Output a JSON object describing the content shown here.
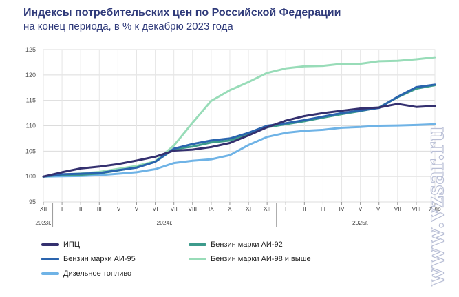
{
  "header": {
    "title": "Индексы потребительских цен по Российской Федерации",
    "subtitle": "на конец периода, в % к декабрю 2023 года"
  },
  "watermark": "www.vzsar.ru",
  "chart_data": {
    "type": "line",
    "y_ticks": [
      "95",
      "100",
      "105",
      "110",
      "115",
      "120",
      "125"
    ],
    "ylim": [
      95,
      125
    ],
    "grid": true,
    "x_labels": [
      "XII",
      "I",
      "II",
      "III",
      "IV",
      "V",
      "VI",
      "VII",
      "VIII",
      "IX",
      "X",
      "XI",
      "XII",
      "I",
      "II",
      "III",
      "IV",
      "V",
      "VI",
      "VII",
      "VIII",
      "IX"
    ],
    "x_label_last_visible": "Х по",
    "year_labels": [
      {
        "text": "2023г.",
        "anchor_index": 0
      },
      {
        "text": "2024г.",
        "anchor_index": 6.5
      },
      {
        "text": "2025г.",
        "anchor_index": 17
      }
    ],
    "series": [
      {
        "name": "ИПЦ",
        "color": "#34306f",
        "values": [
          100,
          100.85,
          101.6,
          101.95,
          102.45,
          103.15,
          103.9,
          105.1,
          105.3,
          105.8,
          106.6,
          108.1,
          109.7,
          111.0,
          111.9,
          112.5,
          112.95,
          113.4,
          113.6,
          114.3,
          113.7,
          113.9
        ]
      },
      {
        "name": "Бензин марки АИ-92",
        "color": "#3d9b8c",
        "values": [
          100,
          100.35,
          100.35,
          100.6,
          101.2,
          101.8,
          102.9,
          105.4,
          105.9,
          106.7,
          107.1,
          108.4,
          109.7,
          110.3,
          110.9,
          111.6,
          112.3,
          112.9,
          113.6,
          115.6,
          117.3,
          118.0
        ]
      },
      {
        "name": "Бензин марки АИ-95",
        "color": "#2a64ae",
        "values": [
          100,
          100.45,
          100.55,
          100.7,
          101.25,
          101.75,
          102.9,
          105.5,
          106.4,
          107.1,
          107.5,
          108.6,
          110.0,
          110.5,
          111.1,
          111.8,
          112.5,
          113.0,
          113.5,
          115.7,
          117.6,
          118.1
        ]
      },
      {
        "name": "Бензин марки АИ-98 и выше",
        "color": "#98dcb8",
        "values": [
          100,
          100.4,
          100.6,
          100.9,
          101.5,
          102.1,
          103.0,
          106.1,
          110.6,
          114.9,
          117.0,
          118.6,
          120.4,
          121.3,
          121.7,
          121.8,
          122.2,
          122.2,
          122.7,
          122.8,
          123.1,
          123.5
        ]
      },
      {
        "name": "Дизельное топливо",
        "color": "#6fb3e6",
        "values": [
          100,
          100.05,
          100.1,
          100.25,
          100.55,
          100.85,
          101.45,
          102.65,
          103.1,
          103.4,
          104.2,
          106.2,
          107.8,
          108.6,
          109.0,
          109.2,
          109.6,
          109.75,
          110.0,
          110.05,
          110.15,
          110.3
        ]
      }
    ]
  },
  "legend": {
    "items": [
      {
        "label": "ИПЦ",
        "color": "#34306f"
      },
      {
        "label": "Бензин марки АИ-92",
        "color": "#3d9b8c"
      },
      {
        "label": "Бензин марки АИ-95",
        "color": "#2a64ae"
      },
      {
        "label": "Бензин марки АИ-98 и выше",
        "color": "#98dcb8"
      },
      {
        "label": "Дизельное топливо",
        "color": "#6fb3e6"
      }
    ]
  }
}
